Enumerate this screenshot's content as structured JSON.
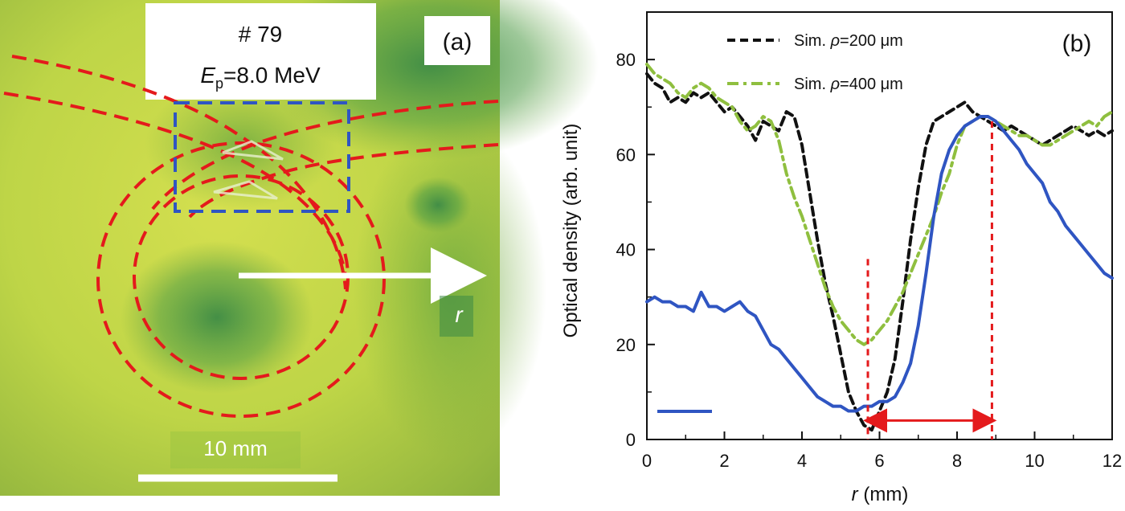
{
  "panel_a": {
    "panel_label": "(a)",
    "shot_label": "# 79",
    "energy_symbol": "E",
    "energy_subscript": "p",
    "energy_value": "=8.0 MeV",
    "arrow_label": "r",
    "scale_bar_label": "10 mm",
    "colors": {
      "background_light": "#d8e04a",
      "background_mid": "#a9cc3e",
      "background_dark": "#3f8f4a",
      "guide_red": "#e41a1c",
      "selection_blue": "#2f55c2",
      "scale_white": "#ffffff"
    }
  },
  "chart_data": {
    "type": "line",
    "panel_label": "(b)",
    "xlabel_symbol": "r",
    "xlabel_unit": " (mm)",
    "ylabel": "Optical density (arb. unit)",
    "xlim": [
      0,
      12
    ],
    "ylim": [
      0,
      90
    ],
    "x_ticks": [
      0,
      2,
      4,
      6,
      8,
      10,
      12
    ],
    "y_ticks": [
      0,
      20,
      40,
      60,
      80
    ],
    "legend": {
      "placement": "top-center",
      "entries": [
        {
          "prefix": "Sim. ",
          "symbol": "ρ",
          "suffix": "=200 μm",
          "color": "#111111",
          "style": "dashed"
        },
        {
          "prefix": "Sim. ",
          "symbol": "ρ",
          "suffix": "=400 μm",
          "color": "#8fbf3f",
          "style": "dash-dot"
        },
        {
          "prefix": "",
          "symbol": "",
          "suffix": "",
          "color": "#2f55c2",
          "style": "solid"
        }
      ]
    },
    "series": [
      {
        "color": "#111111",
        "style": "dashed",
        "x": [
          0,
          0.2,
          0.4,
          0.6,
          0.8,
          1.0,
          1.2,
          1.4,
          1.6,
          1.8,
          2.0,
          2.2,
          2.4,
          2.6,
          2.8,
          3.0,
          3.2,
          3.4,
          3.6,
          3.8,
          4.0,
          4.2,
          4.4,
          4.6,
          4.8,
          5.0,
          5.2,
          5.4,
          5.6,
          5.8,
          6.0,
          6.2,
          6.4,
          6.6,
          6.8,
          7.0,
          7.2,
          7.4,
          7.6,
          7.8,
          8.0,
          8.2,
          8.4,
          8.6,
          8.8,
          9.0,
          9.2,
          9.4,
          9.6,
          9.8,
          10.0,
          10.2,
          10.4,
          10.6,
          10.8,
          11.0,
          11.2,
          11.4,
          11.6,
          11.8,
          12.0
        ],
        "y": [
          77,
          75,
          74,
          71,
          72,
          71,
          73,
          72,
          73,
          71,
          69,
          70,
          68,
          66,
          63,
          67,
          66,
          65,
          69,
          68,
          62,
          52,
          42,
          33,
          26,
          18,
          10,
          6,
          3,
          2,
          6,
          10,
          17,
          29,
          42,
          53,
          62,
          67,
          68,
          69,
          70,
          71,
          69,
          68,
          67,
          66,
          65,
          66,
          65,
          64,
          63,
          62,
          63,
          64,
          65,
          66,
          65,
          64,
          65,
          64,
          65
        ]
      },
      {
        "color": "#8fbf3f",
        "style": "dash-dot",
        "x": [
          0,
          0.2,
          0.4,
          0.6,
          0.8,
          1.0,
          1.2,
          1.4,
          1.6,
          1.8,
          2.0,
          2.2,
          2.4,
          2.6,
          2.8,
          3.0,
          3.2,
          3.4,
          3.6,
          3.8,
          4.0,
          4.2,
          4.4,
          4.6,
          4.8,
          5.0,
          5.2,
          5.4,
          5.6,
          5.8,
          6.0,
          6.2,
          6.4,
          6.6,
          6.8,
          7.0,
          7.2,
          7.4,
          7.6,
          7.8,
          8.0,
          8.2,
          8.4,
          8.6,
          8.8,
          9.0,
          9.2,
          9.4,
          9.6,
          9.8,
          10.0,
          10.2,
          10.4,
          10.6,
          10.8,
          11.0,
          11.2,
          11.4,
          11.6,
          11.8,
          12.0
        ],
        "y": [
          79,
          77,
          76,
          75,
          73,
          72,
          74,
          75,
          74,
          72,
          71,
          70,
          67,
          65,
          66,
          68,
          67,
          63,
          56,
          51,
          47,
          42,
          37,
          32,
          28,
          25,
          23,
          21,
          20,
          21,
          23,
          25,
          28,
          31,
          35,
          39,
          43,
          47,
          52,
          56,
          62,
          66,
          67,
          68,
          68,
          67,
          66,
          65,
          64,
          64,
          63,
          62,
          62,
          63,
          64,
          65,
          66,
          67,
          66,
          68,
          69
        ]
      },
      {
        "color": "#2f55c2",
        "style": "solid",
        "x": [
          0,
          0.2,
          0.4,
          0.6,
          0.8,
          1.0,
          1.2,
          1.4,
          1.6,
          1.8,
          2.0,
          2.2,
          2.4,
          2.6,
          2.8,
          3.0,
          3.2,
          3.4,
          3.6,
          3.8,
          4.0,
          4.2,
          4.4,
          4.6,
          4.8,
          5.0,
          5.2,
          5.4,
          5.6,
          5.8,
          6.0,
          6.2,
          6.4,
          6.6,
          6.8,
          7.0,
          7.2,
          7.4,
          7.6,
          7.8,
          8.0,
          8.2,
          8.4,
          8.6,
          8.8,
          9.0,
          9.2,
          9.4,
          9.6,
          9.8,
          10.0,
          10.2,
          10.4,
          10.6,
          10.8,
          11.0,
          11.2,
          11.4,
          11.6,
          11.8,
          12.0
        ],
        "y": [
          29,
          30,
          29,
          29,
          28,
          28,
          27,
          31,
          28,
          28,
          27,
          28,
          29,
          27,
          26,
          23,
          20,
          19,
          17,
          15,
          13,
          11,
          9,
          8,
          7,
          7,
          6,
          6,
          7,
          7,
          8,
          8,
          9,
          12,
          16,
          24,
          35,
          47,
          56,
          61,
          64,
          66,
          67,
          68,
          68,
          67,
          65,
          63,
          61,
          58,
          56,
          54,
          50,
          48,
          45,
          43,
          41,
          39,
          37,
          35,
          34
        ]
      }
    ],
    "annotations": {
      "dashed_vertical_lines_x": [
        5.7,
        8.9
      ],
      "double_arrow_x": [
        5.7,
        8.9
      ],
      "double_arrow_y": 4,
      "color": "#e41a1c"
    }
  }
}
